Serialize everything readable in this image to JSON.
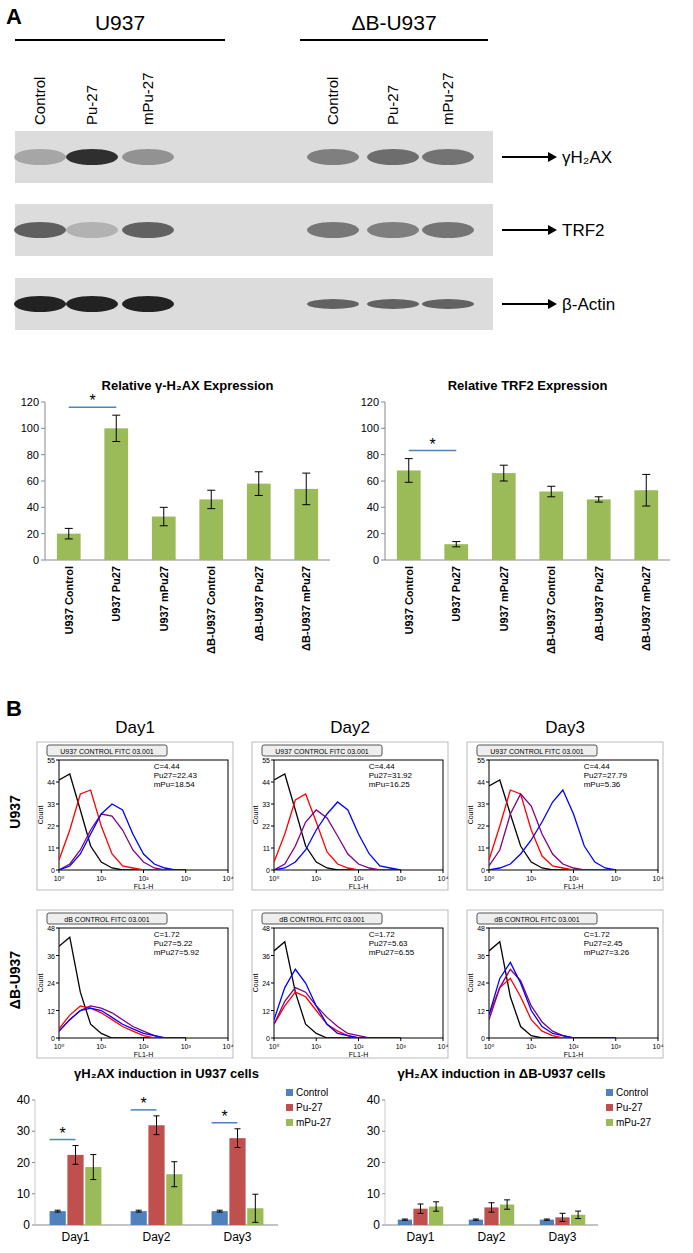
{
  "panel_a": {
    "label": "A",
    "groups": [
      "U937",
      "ΔB-U937"
    ],
    "lanes": [
      "Control",
      "Pu-27",
      "mPu-27",
      "Control",
      "Pu-27",
      "mPu-27"
    ],
    "rows": [
      "γH₂AX",
      "TRF2",
      "β-Actin"
    ]
  },
  "panel_b": {
    "label": "B",
    "columns": [
      "Day1",
      "Day2",
      "Day3"
    ],
    "rows": [
      "U937",
      "ΔB-U937"
    ]
  },
  "chart_data": [
    {
      "type": "bar",
      "title": "Relative γ-H₂AX Expression",
      "categories": [
        "U937 Control",
        "U937 Pu27",
        "U937 mPu27",
        "ΔB-U937 Control",
        "ΔB-U937 Pu27",
        "ΔB-U937 mPu27"
      ],
      "values": [
        20,
        100,
        33,
        46,
        58,
        54
      ],
      "errors": [
        4,
        10,
        7,
        7,
        9,
        12
      ],
      "color": "#9bbb59",
      "ylim": [
        0,
        120
      ],
      "yticks": [
        0,
        20,
        40,
        60,
        80,
        100,
        120
      ],
      "annotations": [
        {
          "text": "*",
          "between": [
            0,
            1
          ]
        }
      ]
    },
    {
      "type": "bar",
      "title": "Relative TRF2 Expression",
      "categories": [
        "U937 Control",
        "U937 Pu27",
        "U937 mPu27",
        "ΔB-U937 Control",
        "ΔB-U937 Pu27",
        "ΔB-U937 mPu27"
      ],
      "values": [
        68,
        12,
        66,
        52,
        46,
        53
      ],
      "errors": [
        9,
        2,
        6,
        4,
        2,
        12
      ],
      "color": "#9bbb59",
      "ylim": [
        0,
        120
      ],
      "yticks": [
        0,
        20,
        40,
        60,
        80,
        100,
        120
      ],
      "annotations": [
        {
          "text": "*",
          "between": [
            0,
            1
          ]
        }
      ]
    },
    {
      "type": "line",
      "title": "U937 CONTROL FITC 03.001",
      "log": "x",
      "x_label": "FL1-H",
      "y_label": "Count",
      "x": [
        1,
        1.8,
        3.2,
        5.6,
        10,
        18,
        32,
        56,
        100,
        180,
        320,
        560,
        1000
      ],
      "xlim": [
        1,
        10000
      ],
      "xticks": [
        {
          "value": 1,
          "label": "10⁰"
        },
        {
          "value": 10,
          "label": "10¹"
        },
        {
          "value": 100,
          "label": "10²"
        },
        {
          "value": 1000,
          "label": "10³"
        },
        {
          "value": 10000,
          "label": "10⁴"
        }
      ],
      "ylim": [
        0,
        55
      ],
      "yticks": [
        0,
        11,
        22,
        33,
        44,
        55
      ],
      "annotations": [
        "C=4.44",
        "Pu27=22.43",
        "mPu=18.54"
      ],
      "series": [
        {
          "color": "#000000",
          "values": [
            45,
            48,
            30,
            12,
            4,
            1,
            0,
            0,
            0,
            0,
            0,
            0,
            0
          ]
        },
        {
          "color": "#ff0000",
          "values": [
            5,
            20,
            38,
            40,
            22,
            8,
            2,
            1,
            0,
            0,
            0,
            0,
            0
          ]
        },
        {
          "color": "#800080",
          "values": [
            0,
            3,
            10,
            20,
            28,
            27,
            20,
            10,
            4,
            1,
            0,
            0,
            0
          ]
        },
        {
          "color": "#0000ff",
          "values": [
            0,
            2,
            8,
            18,
            28,
            33,
            30,
            18,
            8,
            3,
            1,
            0,
            0
          ]
        }
      ]
    },
    {
      "type": "line",
      "title": "U937 CONTROL FITC 03.001",
      "log": "x",
      "x_label": "FL1-H",
      "y_label": "Count",
      "x": [
        1,
        1.8,
        3.2,
        5.6,
        10,
        18,
        32,
        56,
        100,
        180,
        320,
        560,
        1000
      ],
      "xlim": [
        1,
        10000
      ],
      "xticks": [
        {
          "value": 1,
          "label": "10⁰"
        },
        {
          "value": 10,
          "label": "10¹"
        },
        {
          "value": 100,
          "label": "10²"
        },
        {
          "value": 1000,
          "label": "10³"
        },
        {
          "value": 10000,
          "label": "10⁴"
        }
      ],
      "ylim": [
        0,
        55
      ],
      "yticks": [
        0,
        11,
        22,
        33,
        44,
        55
      ],
      "annotations": [
        "C=4.44",
        "Pu27=31.92",
        "mPu=16.25"
      ],
      "series": [
        {
          "color": "#000000",
          "values": [
            45,
            48,
            30,
            12,
            4,
            1,
            0,
            0,
            0,
            0,
            0,
            0,
            0
          ]
        },
        {
          "color": "#ff0000",
          "values": [
            4,
            18,
            35,
            38,
            24,
            9,
            3,
            1,
            0,
            0,
            0,
            0,
            0
          ]
        },
        {
          "color": "#800080",
          "values": [
            0,
            3,
            12,
            24,
            30,
            26,
            17,
            8,
            3,
            1,
            0,
            0,
            0
          ]
        },
        {
          "color": "#0000ff",
          "values": [
            0,
            1,
            4,
            10,
            20,
            28,
            34,
            30,
            18,
            8,
            2,
            1,
            0
          ]
        }
      ]
    },
    {
      "type": "line",
      "title": "U937 CONTROL FITC 03.001",
      "log": "x",
      "x_label": "FL1-H",
      "y_label": "Count",
      "x": [
        1,
        1.8,
        3.2,
        5.6,
        10,
        18,
        32,
        56,
        100,
        180,
        320,
        560,
        1000
      ],
      "xlim": [
        1,
        10000
      ],
      "xticks": [
        {
          "value": 1,
          "label": "10⁰"
        },
        {
          "value": 10,
          "label": "10¹"
        },
        {
          "value": 100,
          "label": "10²"
        },
        {
          "value": 1000,
          "label": "10³"
        },
        {
          "value": 10000,
          "label": "10⁴"
        }
      ],
      "ylim": [
        0,
        55
      ],
      "yticks": [
        0,
        11,
        22,
        33,
        44,
        55
      ],
      "annotations": [
        "C=4.44",
        "Pu27=27.79",
        "mPu=5.36"
      ],
      "series": [
        {
          "color": "#000000",
          "values": [
            42,
            45,
            28,
            12,
            4,
            1,
            0,
            0,
            0,
            0,
            0,
            0,
            0
          ]
        },
        {
          "color": "#ff0000",
          "values": [
            5,
            22,
            40,
            38,
            20,
            7,
            2,
            1,
            0,
            0,
            0,
            0,
            0
          ]
        },
        {
          "color": "#800080",
          "values": [
            2,
            10,
            28,
            38,
            32,
            18,
            8,
            3,
            1,
            0,
            0,
            0,
            0
          ]
        },
        {
          "color": "#0000ff",
          "values": [
            0,
            1,
            3,
            8,
            15,
            24,
            34,
            40,
            28,
            12,
            4,
            1,
            0
          ]
        }
      ]
    },
    {
      "type": "line",
      "title": "dB CONTROL FITC 03.001",
      "log": "x",
      "x_label": "FL1-H",
      "y_label": "Count",
      "x": [
        1,
        1.8,
        3.2,
        5.6,
        10,
        18,
        32,
        56,
        100,
        180,
        320,
        560,
        1000
      ],
      "xlim": [
        1,
        10000
      ],
      "xticks": [
        {
          "value": 1,
          "label": "10⁰"
        },
        {
          "value": 10,
          "label": "10¹"
        },
        {
          "value": 100,
          "label": "10²"
        },
        {
          "value": 1000,
          "label": "10³"
        },
        {
          "value": 10000,
          "label": "10⁴"
        }
      ],
      "ylim": [
        0,
        48
      ],
      "yticks": [
        0,
        12,
        24,
        36,
        48
      ],
      "annotations": [
        "C=1.72",
        "Pu27=5.22",
        "mPu27=5.92"
      ],
      "series": [
        {
          "color": "#000000",
          "values": [
            40,
            44,
            20,
            6,
            2,
            0,
            0,
            0,
            0,
            0,
            0,
            0,
            0
          ]
        },
        {
          "color": "#ff0000",
          "values": [
            4,
            10,
            14,
            13,
            11,
            8,
            5,
            3,
            1,
            0,
            0,
            0,
            0
          ]
        },
        {
          "color": "#800080",
          "values": [
            3,
            8,
            12,
            14,
            13,
            11,
            8,
            5,
            3,
            1,
            0,
            0,
            0
          ]
        },
        {
          "color": "#0000ff",
          "values": [
            3,
            8,
            12,
            13,
            12,
            9,
            6,
            4,
            2,
            1,
            0,
            0,
            0
          ]
        }
      ]
    },
    {
      "type": "line",
      "title": "dB CONTROL FITC 03.001",
      "log": "x",
      "x_label": "FL1-H",
      "y_label": "Count",
      "x": [
        1,
        1.8,
        3.2,
        5.6,
        10,
        18,
        32,
        56,
        100,
        180,
        320,
        560,
        1000
      ],
      "xlim": [
        1,
        10000
      ],
      "xticks": [
        {
          "value": 1,
          "label": "10⁰"
        },
        {
          "value": 10,
          "label": "10¹"
        },
        {
          "value": 100,
          "label": "10²"
        },
        {
          "value": 1000,
          "label": "10³"
        },
        {
          "value": 10000,
          "label": "10⁴"
        }
      ],
      "ylim": [
        0,
        48
      ],
      "yticks": [
        0,
        12,
        24,
        36,
        48
      ],
      "annotations": [
        "C=1.72",
        "Pu27=5.63",
        "mPu27=6.55"
      ],
      "series": [
        {
          "color": "#000000",
          "values": [
            38,
            42,
            20,
            6,
            2,
            0,
            0,
            0,
            0,
            0,
            0,
            0,
            0
          ]
        },
        {
          "color": "#ff0000",
          "values": [
            6,
            14,
            20,
            18,
            12,
            6,
            3,
            1,
            0,
            0,
            0,
            0,
            0
          ]
        },
        {
          "color": "#800080",
          "values": [
            6,
            16,
            22,
            20,
            14,
            9,
            5,
            2,
            1,
            0,
            0,
            0,
            0
          ]
        },
        {
          "color": "#0000ff",
          "values": [
            8,
            22,
            30,
            24,
            14,
            6,
            2,
            1,
            0,
            0,
            0,
            0,
            0
          ]
        }
      ]
    },
    {
      "type": "line",
      "title": "dB CONTROL FITC 03.001",
      "log": "x",
      "x_label": "FL1-H",
      "y_label": "Count",
      "x": [
        1,
        1.8,
        3.2,
        5.6,
        10,
        18,
        32,
        56,
        100,
        180,
        320,
        560,
        1000
      ],
      "xlim": [
        1,
        10000
      ],
      "xticks": [
        {
          "value": 1,
          "label": "10⁰"
        },
        {
          "value": 10,
          "label": "10¹"
        },
        {
          "value": 100,
          "label": "10²"
        },
        {
          "value": 1000,
          "label": "10³"
        },
        {
          "value": 10000,
          "label": "10⁴"
        }
      ],
      "ylim": [
        0,
        48
      ],
      "yticks": [
        0,
        12,
        24,
        36,
        48
      ],
      "annotations": [
        "C=1.72",
        "Pu27=2.45",
        "mPu27=3.26"
      ],
      "series": [
        {
          "color": "#000000",
          "values": [
            38,
            42,
            18,
            5,
            1,
            0,
            0,
            0,
            0,
            0,
            0,
            0,
            0
          ]
        },
        {
          "color": "#ff0000",
          "values": [
            10,
            22,
            26,
            18,
            8,
            3,
            1,
            0,
            0,
            0,
            0,
            0,
            0
          ]
        },
        {
          "color": "#800080",
          "values": [
            8,
            22,
            30,
            25,
            14,
            7,
            3,
            1,
            0,
            0,
            0,
            0,
            0
          ]
        },
        {
          "color": "#0000ff",
          "values": [
            10,
            26,
            33,
            24,
            12,
            5,
            2,
            1,
            0,
            0,
            0,
            0,
            0
          ]
        }
      ]
    },
    {
      "type": "bar",
      "title": "γH₂AX induction in U937 cells",
      "categories": [
        "Day1",
        "Day2",
        "Day3"
      ],
      "ylim": [
        0,
        40
      ],
      "yticks": [
        0,
        10,
        20,
        30,
        40
      ],
      "legend": "right",
      "series": [
        {
          "name": "Control",
          "color": "#4f81bd",
          "values": [
            4.44,
            4.44,
            4.44
          ],
          "errors": [
            0.3,
            0.3,
            0.3
          ]
        },
        {
          "name": "Pu-27",
          "color": "#c0504d",
          "values": [
            22.43,
            31.92,
            27.79
          ],
          "errors": [
            3,
            3,
            3
          ]
        },
        {
          "name": "mPu-27",
          "color": "#9bbb59",
          "values": [
            18.54,
            16.25,
            5.36
          ],
          "errors": [
            4,
            4,
            4.5
          ]
        }
      ],
      "annotations": [
        {
          "text": "*",
          "category": 0,
          "between": [
            0,
            1
          ]
        },
        {
          "text": "*",
          "category": 1,
          "between": [
            0,
            1
          ]
        },
        {
          "text": "*",
          "category": 2,
          "between": [
            0,
            1
          ]
        }
      ]
    },
    {
      "type": "bar",
      "title": "γH₂AX induction in ΔB-U937 cells",
      "categories": [
        "Day1",
        "Day2",
        "Day3"
      ],
      "ylim": [
        0,
        40
      ],
      "yticks": [
        0,
        10,
        20,
        30,
        40
      ],
      "legend": "right",
      "series": [
        {
          "name": "Control",
          "color": "#4f81bd",
          "values": [
            1.72,
            1.72,
            1.72
          ],
          "errors": [
            0.2,
            0.2,
            0.2
          ]
        },
        {
          "name": "Pu-27",
          "color": "#c0504d",
          "values": [
            5.22,
            5.63,
            2.45
          ],
          "errors": [
            1.5,
            1.5,
            1.3
          ]
        },
        {
          "name": "mPu-27",
          "color": "#9bbb59",
          "values": [
            5.92,
            6.55,
            3.26
          ],
          "errors": [
            1.5,
            1.5,
            1.2
          ]
        }
      ]
    }
  ]
}
